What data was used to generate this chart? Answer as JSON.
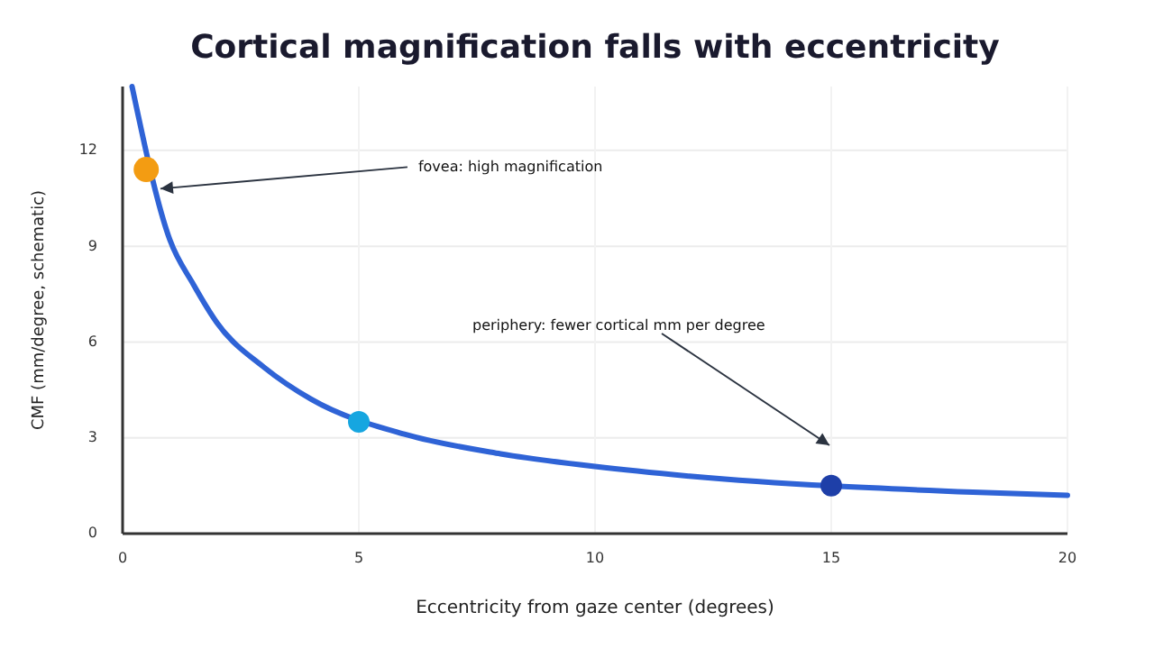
{
  "chart_data": {
    "type": "line",
    "title": "Cortical magnification falls with eccentricity",
    "xlabel": "Eccentricity from gaze center (degrees)",
    "ylabel": "CMF (mm/degree, schematic)",
    "xlim": [
      0,
      20
    ],
    "xticks": [
      0,
      5,
      10,
      15,
      20
    ],
    "ylim": [
      0,
      14
    ],
    "yticks": [
      0,
      3,
      6,
      9,
      12
    ],
    "grid": true,
    "series": [
      {
        "color": "#2f63d6",
        "marker": "none",
        "x": [
          0.2,
          1,
          1.5,
          2,
          3,
          4,
          6,
          8,
          10,
          12,
          18,
          20
        ],
        "values": [
          14,
          9.2,
          7.8,
          6.6,
          5.2,
          4.2,
          3.1,
          2.5,
          2.1,
          1.8,
          1.3,
          1.2
        ]
      },
      {
        "type": "scatter",
        "marker": "circle",
        "x": [
          0.5,
          5,
          15
        ],
        "values": [
          11.4,
          3.5,
          1.5
        ],
        "colors": [
          "#f39c12",
          "#16a6e0",
          "#1e3fa8"
        ]
      }
    ],
    "annotations": [
      {
        "text": "fovea: high magnification",
        "x": 0.8,
        "y": 10.8
      },
      "periphery: fewer cortical mm per degree"
    ]
  }
}
